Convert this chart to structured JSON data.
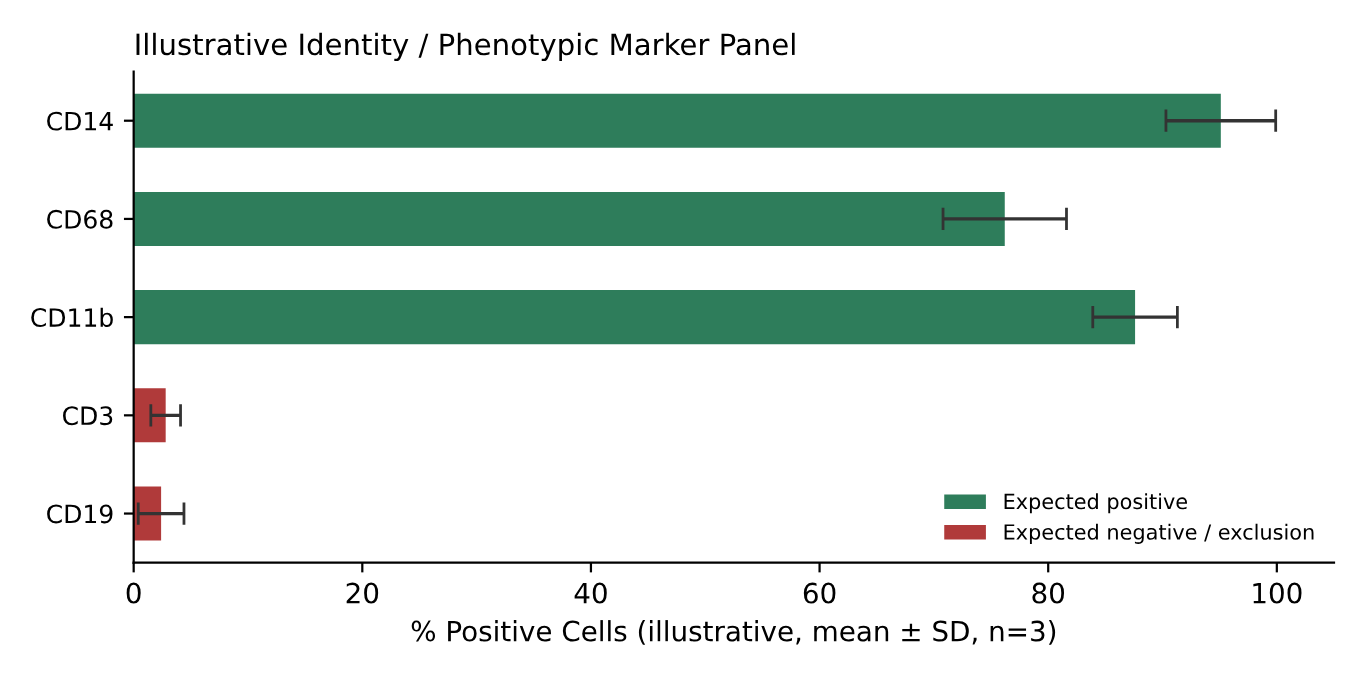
{
  "chart_data": {
    "type": "bar",
    "orientation": "horizontal",
    "title": "Illustrative Identity / Phenotypic Marker Panel",
    "xlabel": "% Positive Cells (illustrative, mean ± SD, n=3)",
    "categories": [
      "CD14",
      "CD68",
      "CD11b",
      "CD3",
      "CD19"
    ],
    "series": [
      {
        "name": "Expected positive",
        "color": "#2e7d5b",
        "values": [
          95.1,
          76.2,
          87.6,
          null,
          null
        ],
        "errors": [
          4.8,
          5.4,
          3.7,
          null,
          null
        ]
      },
      {
        "name": "Expected negative / exclusion",
        "color": "#b03a3a",
        "values": [
          null,
          null,
          null,
          2.8,
          2.4
        ],
        "errors": [
          null,
          null,
          null,
          1.3,
          2.0
        ]
      }
    ],
    "xlim": [
      0,
      105
    ],
    "xticks": [
      0,
      20,
      40,
      60,
      80,
      100
    ],
    "grid": false,
    "legend": "bottom right"
  }
}
